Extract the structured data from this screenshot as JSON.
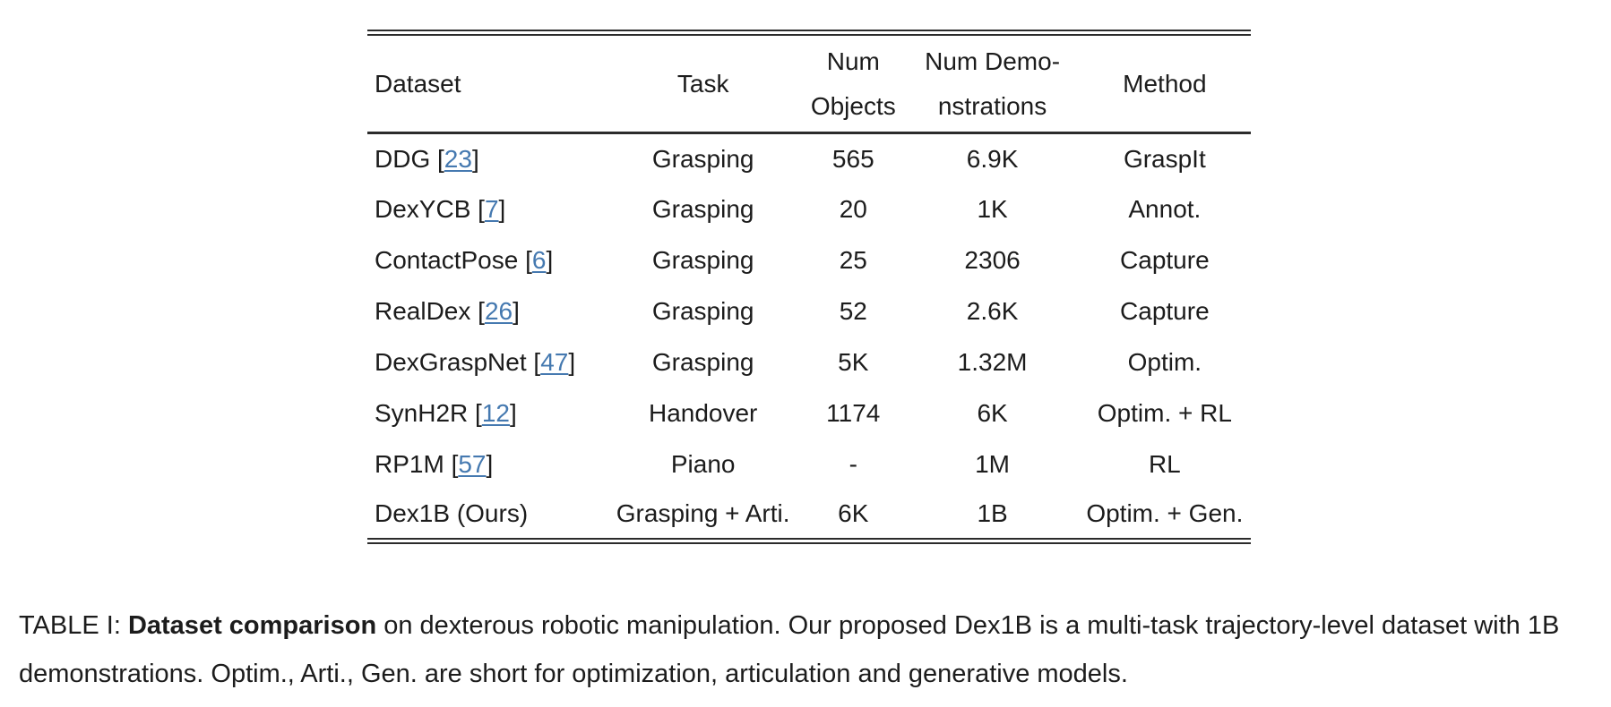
{
  "table": {
    "citation_format": {
      "open": " [",
      "close": "]"
    },
    "columns": [
      {
        "label": [
          "Dataset"
        ]
      },
      {
        "label": [
          "Task"
        ]
      },
      {
        "label": [
          "Num",
          "Objects"
        ]
      },
      {
        "label": [
          "Num Demo-",
          "nstrations"
        ]
      },
      {
        "label": [
          "Method"
        ]
      }
    ],
    "rows": [
      {
        "dataset": "DDG",
        "cite": "23",
        "task": "Grasping",
        "num_objects": "565",
        "num_demos": "6.9K",
        "method": "GraspIt"
      },
      {
        "dataset": "DexYCB",
        "cite": "7",
        "task": "Grasping",
        "num_objects": "20",
        "num_demos": "1K",
        "method": "Annot."
      },
      {
        "dataset": "ContactPose",
        "cite": "6",
        "task": "Grasping",
        "num_objects": "25",
        "num_demos": "2306",
        "method": "Capture"
      },
      {
        "dataset": "RealDex",
        "cite": "26",
        "task": "Grasping",
        "num_objects": "52",
        "num_demos": "2.6K",
        "method": "Capture"
      },
      {
        "dataset": "DexGraspNet",
        "cite": "47",
        "task": "Grasping",
        "num_objects": "5K",
        "num_demos": "1.32M",
        "method": "Optim."
      },
      {
        "dataset": "SynH2R",
        "cite": "12",
        "task": "Handover",
        "num_objects": "1174",
        "num_demos": "6K",
        "method": "Optim. + RL"
      },
      {
        "dataset": "RP1M",
        "cite": "57",
        "task": "Piano",
        "num_objects": "-",
        "num_demos": "1M",
        "method": "RL"
      },
      {
        "dataset": "Dex1B (Ours)",
        "cite": null,
        "task": "Grasping + Arti.",
        "num_objects": "6K",
        "num_demos": "1B",
        "method": "Optim. + Gen."
      }
    ]
  },
  "caption": {
    "label": "TABLE I: ",
    "bold": "Dataset comparison",
    "rest": " on dexterous robotic manipulation. Our proposed Dex1B is a multi-task trajectory-level dataset with 1B demonstrations. Optim., Arti., Gen. are short for optimization, articulation and generative models."
  },
  "colors": {
    "text": "#1c1c1c",
    "link": "#4579b0",
    "rule": "#2b2b2b"
  }
}
